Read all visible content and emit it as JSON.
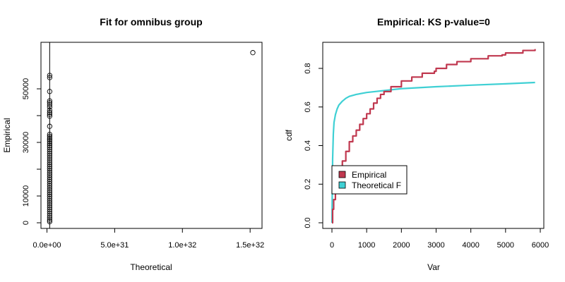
{
  "chart_data": [
    {
      "type": "scatter",
      "title": "Fit for omnibus group",
      "xlabel": "Theoretical",
      "ylabel": "Empirical",
      "xlim": [
        0,
        1.52e+32
      ],
      "ylim": [
        0,
        65000
      ],
      "x_ticks": [
        {
          "value": 0,
          "label": "0.0e+00"
        },
        {
          "value": 5e+31,
          "label": "5.0e+31"
        },
        {
          "value": 1e+32,
          "label": "1.0e+32"
        },
        {
          "value": 1.5e+32,
          "label": "1.5e+32"
        }
      ],
      "y_ticks": [
        {
          "value": 0,
          "label": "0"
        },
        {
          "value": 10000,
          "label": "10000"
        },
        {
          "value": 30000,
          "label": "30000"
        },
        {
          "value": 50000,
          "label": "50000"
        }
      ],
      "y_minor_ticks": [
        20000,
        40000
      ],
      "vertical_line_x": 2e+30,
      "marker": "open-circle",
      "outlier": {
        "x": 1.52e+32,
        "y": 63500
      },
      "points_y": [
        55000,
        54200,
        49000,
        45500,
        44800,
        44000,
        43200,
        42000,
        41200,
        40500,
        39800,
        36000,
        33000,
        32300,
        31600,
        31000,
        30300,
        29600,
        28900,
        28200,
        27400,
        26600,
        25800,
        25000,
        24200,
        23400,
        22600,
        21800,
        21000,
        20200,
        19400,
        18600,
        17800,
        17000,
        16200,
        15400,
        14600,
        13800,
        13000,
        12200,
        11400,
        10600,
        9800,
        9000,
        8200,
        7400,
        6600,
        5800,
        5000,
        4200,
        3400,
        2600,
        1800,
        1000,
        400
      ]
    },
    {
      "type": "line",
      "title": "Empirical: KS p-value=0",
      "xlabel": "Var",
      "ylabel": "cdf",
      "xlim": [
        -200,
        6000
      ],
      "ylim": [
        -0.02,
        0.93
      ],
      "x_ticks": [
        0,
        1000,
        2000,
        3000,
        4000,
        5000,
        6000
      ],
      "y_ticks": [
        0.0,
        0.2,
        0.4,
        0.6,
        0.8
      ],
      "legend_position": "left-center",
      "series": [
        {
          "name": "Empirical",
          "color": "#c0384f",
          "x": [
            0,
            20,
            50,
            100,
            200,
            300,
            400,
            500,
            600,
            700,
            800,
            900,
            1000,
            1100,
            1200,
            1300,
            1400,
            1500,
            1700,
            2000,
            2300,
            2600,
            2950,
            3000,
            3300,
            3600,
            4000,
            4500,
            4900,
            5000,
            5500,
            5850
          ],
          "y": [
            0.0,
            0.07,
            0.12,
            0.17,
            0.25,
            0.32,
            0.37,
            0.42,
            0.45,
            0.48,
            0.51,
            0.54,
            0.565,
            0.59,
            0.62,
            0.645,
            0.665,
            0.68,
            0.705,
            0.735,
            0.755,
            0.775,
            0.785,
            0.8,
            0.82,
            0.835,
            0.85,
            0.865,
            0.87,
            0.88,
            0.893,
            0.9
          ]
        },
        {
          "name": "Theoretical F",
          "color": "#3fd0d4",
          "x": [
            0,
            20,
            40,
            60,
            100,
            150,
            200,
            300,
            400,
            500,
            700,
            1000,
            1500,
            2000,
            3000,
            4000,
            5000,
            5850
          ],
          "y": [
            0.0,
            0.33,
            0.46,
            0.52,
            0.56,
            0.59,
            0.61,
            0.63,
            0.645,
            0.655,
            0.665,
            0.675,
            0.685,
            0.695,
            0.705,
            0.713,
            0.72,
            0.727
          ]
        }
      ]
    }
  ]
}
